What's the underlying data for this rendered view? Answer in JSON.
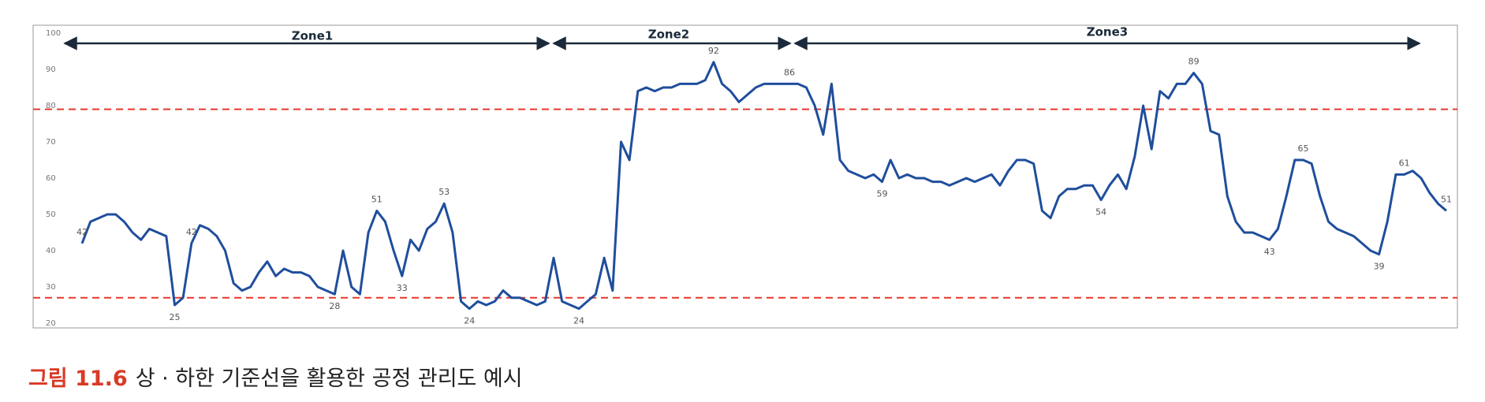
{
  "chart_data": {
    "type": "line",
    "zones": [
      "Zone1",
      "Zone2",
      "Zone3"
    ],
    "series": [
      {
        "color": "#1f4e9c",
        "values": [
          42,
          48,
          49,
          50,
          50,
          48,
          45,
          43,
          46,
          45,
          44,
          25,
          27,
          42,
          47,
          46,
          44,
          40,
          31,
          29,
          30,
          34,
          37,
          33,
          35,
          34,
          34,
          33,
          30,
          29,
          28,
          40,
          30,
          28,
          45,
          51,
          48,
          40,
          33,
          43,
          40,
          46,
          48,
          53,
          45,
          26,
          24,
          26,
          25,
          26,
          29,
          27,
          27,
          26,
          25,
          26,
          38,
          26,
          25,
          24,
          26,
          28,
          38,
          29,
          70,
          65,
          84,
          85,
          84,
          85,
          85,
          86,
          86,
          86,
          87,
          92,
          86,
          84,
          81,
          83,
          85,
          86,
          86,
          86,
          86,
          86,
          85,
          80,
          72,
          86,
          65,
          62,
          61,
          60,
          61,
          59,
          65,
          60,
          61,
          60,
          60,
          59,
          59,
          58,
          59,
          60,
          59,
          60,
          61,
          58,
          62,
          65,
          65,
          64,
          51,
          49,
          55,
          57,
          57,
          58,
          58,
          54,
          58,
          61,
          57,
          66,
          80,
          68,
          84,
          82,
          86,
          86,
          89,
          86,
          73,
          72,
          55,
          48,
          45,
          45,
          44,
          43,
          46,
          55,
          65,
          65,
          64,
          55,
          48,
          46,
          45,
          44,
          42,
          40,
          39,
          48,
          61,
          61,
          62,
          60,
          56,
          53,
          51
        ],
        "value_labels": [
          "42",
          null,
          null,
          null,
          null,
          null,
          null,
          null,
          null,
          null,
          null,
          "25",
          null,
          "42",
          null,
          null,
          null,
          null,
          null,
          null,
          null,
          null,
          null,
          null,
          null,
          null,
          null,
          null,
          null,
          null,
          "28",
          null,
          null,
          null,
          null,
          "51",
          null,
          null,
          "33",
          null,
          null,
          null,
          null,
          "53",
          null,
          null,
          "24",
          null,
          null,
          null,
          null,
          null,
          null,
          null,
          null,
          null,
          null,
          null,
          null,
          "24",
          null,
          null,
          null,
          null,
          null,
          null,
          null,
          null,
          null,
          null,
          null,
          null,
          null,
          null,
          null,
          "92",
          null,
          null,
          null,
          null,
          null,
          null,
          null,
          null,
          "86",
          null,
          null,
          null,
          null,
          null,
          null,
          null,
          null,
          null,
          null,
          "59",
          null,
          null,
          null,
          null,
          null,
          null,
          null,
          null,
          null,
          null,
          null,
          null,
          null,
          null,
          null,
          null,
          null,
          null,
          null,
          null,
          null,
          null,
          null,
          null,
          null,
          "54",
          null,
          null,
          null,
          null,
          null,
          null,
          null,
          null,
          null,
          null,
          "89",
          null,
          null,
          null,
          null,
          null,
          null,
          null,
          null,
          "43",
          null,
          null,
          null,
          "65",
          null,
          null,
          null,
          null,
          null,
          null,
          null,
          null,
          "39",
          null,
          null,
          "61",
          null,
          null,
          null,
          null,
          "51"
        ]
      }
    ],
    "control_limits": {
      "upper": 79,
      "lower": 27,
      "color": "#e8372c"
    },
    "ylim": [
      20,
      100
    ],
    "yticks": [
      20,
      30,
      40,
      50,
      60,
      70,
      80,
      90,
      100
    ]
  },
  "caption": {
    "label": "그림 11.6",
    "text": "상 · 하한 기준선을 활용한 공정 관리도 예시"
  }
}
